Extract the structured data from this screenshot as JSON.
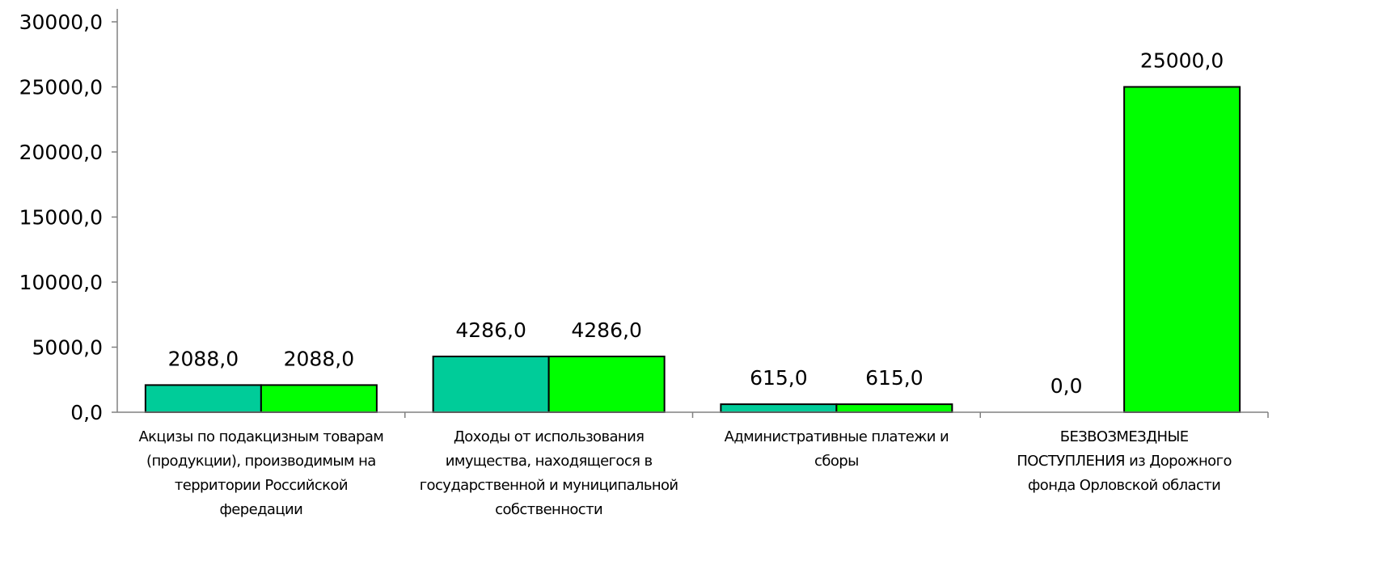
{
  "chart_data": {
    "type": "bar",
    "title": "",
    "xlabel": "",
    "ylabel": "",
    "ylim": [
      0,
      30000
    ],
    "yticks": [
      0,
      5000,
      10000,
      15000,
      20000,
      25000,
      30000
    ],
    "ytick_labels": [
      "0,0",
      "5000,0",
      "10000,0",
      "15000,0",
      "20000,0",
      "25000,0",
      "30000,0"
    ],
    "grid": false,
    "legend": "none",
    "categories": [
      [
        "Акцизы по подакцизным товарам",
        "(продукции), производимым на",
        "территории Российской",
        "фередации"
      ],
      [
        "Доходы от использования",
        "имущества, находящегося в",
        "государственной и муниципальной",
        "собственности"
      ],
      [
        "Административные платежи и",
        "сборы"
      ],
      [
        "БЕЗВОЗМЕЗДНЫЕ",
        "ПОСТУПЛЕНИЯ из Дорожного",
        "фонда Орловской области"
      ]
    ],
    "series": [
      {
        "color": "#00CC99",
        "values": [
          2088.0,
          4286.0,
          615.0,
          0.0
        ],
        "value_labels": [
          "2088,0",
          "4286,0",
          "615,0",
          "0,0"
        ]
      },
      {
        "color": "#00FF00",
        "values": [
          2088.0,
          4286.0,
          615.0,
          25000.0
        ],
        "value_labels": [
          "2088,0",
          "4286,0",
          "615,0",
          "25000,0"
        ]
      }
    ]
  }
}
